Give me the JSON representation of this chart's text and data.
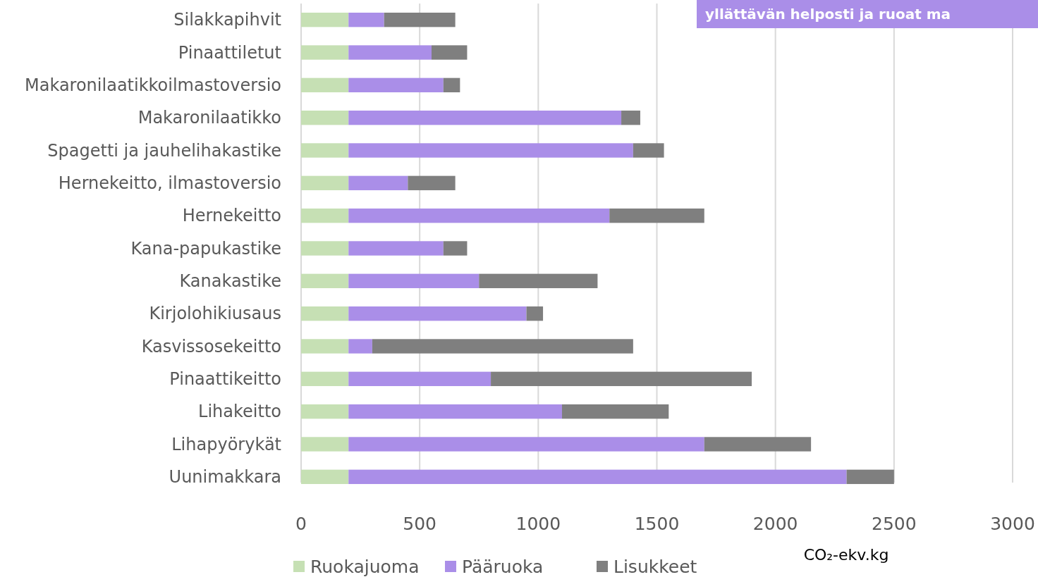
{
  "chart_data": {
    "type": "bar",
    "orientation": "horizontal",
    "stacked": true,
    "categories": [
      "Silakkapihvit",
      "Pinaattiletut",
      "Makaronilaatikkoilmastoversio",
      "Makaronilaatikko",
      "Spagetti ja jauhelihakastike",
      "Hernekeitto, ilmastoversio",
      "Hernekeitto",
      "Kana-papukastike",
      "Kanakastike",
      "Kirjolohikiusaus",
      "Kasvissosekeitto",
      "Pinaattikeitto",
      "Lihakeitto",
      "Lihapyörykät",
      "Uunimakkara"
    ],
    "series": [
      {
        "name": "Ruokajuoma",
        "color": "#c6e0b4",
        "values": [
          200,
          200,
          200,
          200,
          200,
          200,
          200,
          200,
          200,
          200,
          200,
          200,
          200,
          200,
          200
        ]
      },
      {
        "name": "Pääruoka",
        "color": "#aa8ee8",
        "values": [
          150,
          350,
          400,
          1150,
          1200,
          250,
          1100,
          400,
          550,
          750,
          100,
          600,
          900,
          1500,
          2100
        ]
      },
      {
        "name": "Lisukkeet",
        "color": "#7f7f7f",
        "values": [
          300,
          150,
          70,
          80,
          130,
          200,
          400,
          100,
          500,
          70,
          1100,
          1100,
          450,
          450,
          200
        ]
      }
    ],
    "xlabel": "CO₂-ekv.kg",
    "xlim": [
      0,
      3000
    ],
    "xticks": [
      0,
      500,
      1000,
      1500,
      2000,
      2500,
      3000
    ],
    "grid": "x",
    "legend": "bottom",
    "annotations": [
      "yllättävän helposti ja ruoat ma"
    ]
  }
}
